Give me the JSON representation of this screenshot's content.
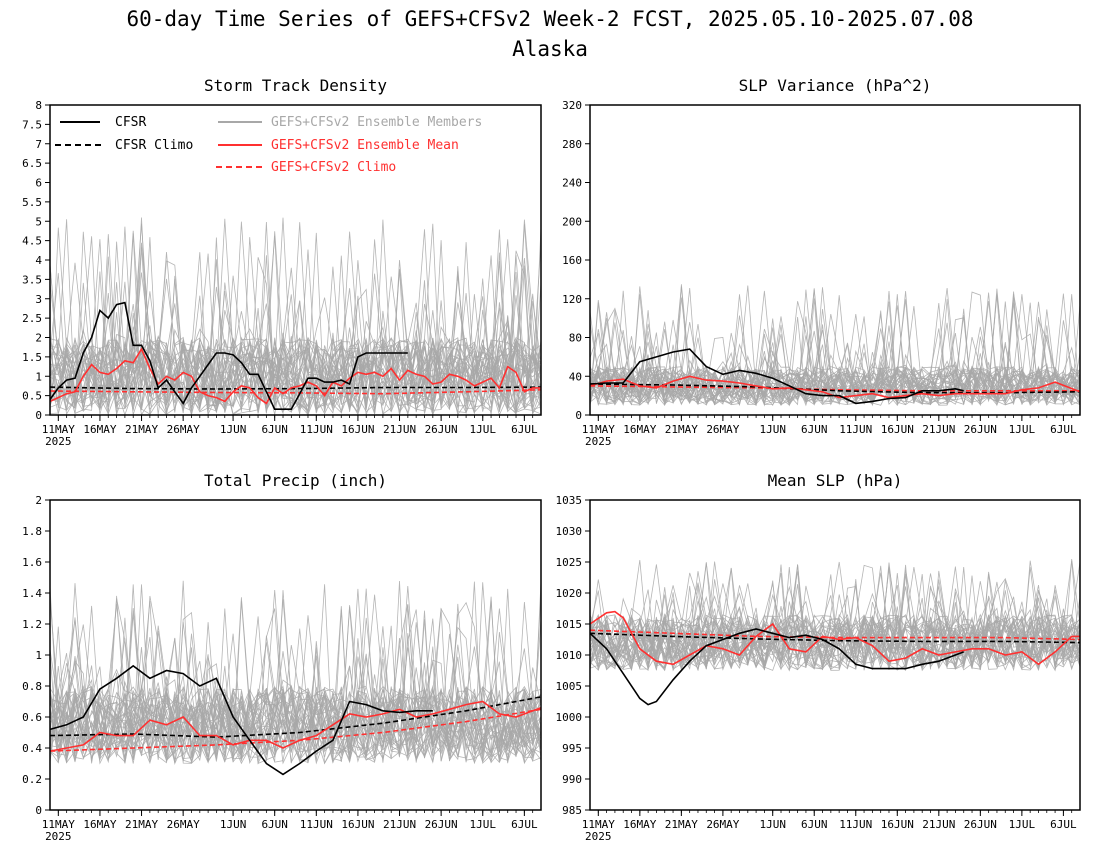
{
  "figure": {
    "title_line1": "60-day Time Series of GEFS+CFSv2 Week-2 FCST, 2025.05.10-2025.07.08",
    "title_line2": "Alaska"
  },
  "legend": {
    "cfsr": "CFSR",
    "cfsr_climo": "CFSR Climo",
    "members": "GEFS+CFSv2 Ensemble Members",
    "mean": "GEFS+CFSv2 Ensemble Mean",
    "climo": "GEFS+CFSv2 Climo"
  },
  "colors": {
    "cfsr": "#000000",
    "members": "#a8a8a8",
    "mean": "#ff3030",
    "climo": "#ff3030",
    "background": "#ffffff"
  },
  "x_axis": {
    "tick_days": [
      1,
      6,
      11,
      16,
      22,
      27,
      32,
      37,
      42,
      47,
      52,
      57
    ],
    "tick_labels": [
      "11MAY",
      "16MAY",
      "21MAY",
      "26MAY",
      "1JUN",
      "6JUN",
      "11JUN",
      "16JUN",
      "21JUN",
      "26JUN",
      "1JUL",
      "6JUL"
    ],
    "year_label": "2025",
    "day_range": [
      0,
      59
    ]
  },
  "chart_data": [
    {
      "type": "line",
      "title": "Storm Track Density",
      "ylim": [
        0,
        8
      ],
      "yticks": [
        "0",
        "0.5",
        "1",
        "1.5",
        "2",
        "2.5",
        "3",
        "3.5",
        "4",
        "4.5",
        "5",
        "5.5",
        "6",
        "6.5",
        "7",
        "7.5",
        "8"
      ],
      "ytick_step": 0.5,
      "legend_position": "top",
      "members": {
        "mean_base": 1.0,
        "spread": 1.0,
        "peak_max": 5.1,
        "count": 40
      },
      "series": [
        {
          "name": "CFSR",
          "days": [
            0,
            1,
            2,
            3,
            4,
            5,
            6,
            7,
            8,
            9,
            10,
            11,
            12,
            13,
            14,
            15,
            16,
            17,
            18,
            19,
            20,
            21,
            22,
            23,
            24,
            25,
            26,
            27,
            28,
            29,
            30,
            31,
            32,
            33,
            34,
            35,
            36,
            37,
            38,
            39,
            40,
            41,
            42,
            43
          ],
          "values": [
            0.4,
            0.7,
            0.9,
            0.95,
            1.6,
            2.0,
            2.7,
            2.5,
            2.85,
            2.9,
            1.8,
            1.8,
            1.4,
            0.7,
            0.9,
            0.6,
            0.3,
            0.7,
            1.0,
            1.3,
            1.6,
            1.6,
            1.55,
            1.35,
            1.05,
            1.05,
            0.6,
            0.15,
            0.15,
            0.15,
            0.55,
            0.95,
            0.95,
            0.85,
            0.85,
            0.9,
            0.8,
            1.5,
            1.6,
            1.6,
            1.6,
            1.6,
            1.6,
            1.6
          ]
        },
        {
          "name": "CFSR Climo",
          "days": [
            0,
            10,
            20,
            30,
            40,
            50,
            59
          ],
          "values": [
            0.72,
            0.68,
            0.67,
            0.68,
            0.71,
            0.71,
            0.72
          ]
        },
        {
          "name": "GEFS+CFSv2 Ensemble Mean",
          "days": [
            0,
            1,
            2,
            3,
            4,
            5,
            6,
            7,
            8,
            9,
            10,
            11,
            12,
            13,
            14,
            15,
            16,
            17,
            18,
            19,
            20,
            21,
            22,
            23,
            24,
            25,
            26,
            27,
            28,
            29,
            30,
            31,
            32,
            33,
            34,
            35,
            36,
            37,
            38,
            39,
            40,
            41,
            42,
            43,
            44,
            45,
            46,
            47,
            48,
            49,
            50,
            51,
            52,
            53,
            54,
            55,
            56,
            57,
            58,
            59
          ],
          "values": [
            0.35,
            0.45,
            0.55,
            0.6,
            1.0,
            1.3,
            1.1,
            1.05,
            1.2,
            1.4,
            1.35,
            1.7,
            1.2,
            0.8,
            1.0,
            0.9,
            1.1,
            1.0,
            0.6,
            0.5,
            0.45,
            0.35,
            0.6,
            0.75,
            0.7,
            0.45,
            0.3,
            0.7,
            0.55,
            0.7,
            0.75,
            0.85,
            0.75,
            0.5,
            0.85,
            0.75,
            0.95,
            1.1,
            1.05,
            1.1,
            1.0,
            1.2,
            0.9,
            1.15,
            1.05,
            1.0,
            0.8,
            0.85,
            1.05,
            1.0,
            0.9,
            0.75,
            0.85,
            0.95,
            0.7,
            1.25,
            1.1,
            0.6,
            0.7,
            0.7
          ]
        },
        {
          "name": "GEFS+CFSv2 Climo",
          "days": [
            0,
            10,
            20,
            30,
            40,
            50,
            59
          ],
          "values": [
            0.62,
            0.6,
            0.58,
            0.57,
            0.55,
            0.6,
            0.65
          ]
        }
      ]
    },
    {
      "type": "line",
      "title": "SLP Variance (hPa^2)",
      "ylim": [
        0,
        320
      ],
      "yticks": [
        "0",
        "40",
        "80",
        "120",
        "160",
        "200",
        "240",
        "280",
        "320"
      ],
      "ytick_step": 40,
      "members": {
        "mean_base": 30,
        "spread": 20,
        "peak_max": 135,
        "count": 40
      },
      "series": [
        {
          "name": "CFSR",
          "days": [
            0,
            2,
            4,
            6,
            8,
            10,
            12,
            14,
            16,
            18,
            20,
            22,
            24,
            26,
            28,
            30,
            32,
            34,
            36,
            38,
            40,
            42,
            44,
            45
          ],
          "values": [
            32,
            33,
            33,
            55,
            60,
            65,
            68,
            50,
            42,
            46,
            43,
            38,
            30,
            22,
            20,
            20,
            12,
            14,
            17,
            18,
            25,
            25,
            27,
            25
          ]
        },
        {
          "name": "CFSR Climo",
          "days": [
            0,
            10,
            20,
            30,
            40,
            50,
            59
          ],
          "values": [
            32,
            31,
            29,
            25,
            23,
            23,
            24
          ]
        },
        {
          "name": "GEFS+CFSv2 Ensemble Mean",
          "days": [
            0,
            2,
            4,
            6,
            8,
            10,
            12,
            14,
            16,
            18,
            20,
            22,
            24,
            26,
            28,
            30,
            32,
            34,
            36,
            38,
            40,
            42,
            44,
            46,
            48,
            50,
            52,
            54,
            56,
            59
          ],
          "values": [
            30,
            35,
            37,
            30,
            28,
            35,
            40,
            36,
            35,
            33,
            30,
            27,
            28,
            26,
            24,
            18,
            20,
            22,
            18,
            20,
            22,
            20,
            22,
            22,
            22,
            22,
            26,
            28,
            34,
            24
          ]
        },
        {
          "name": "GEFS+CFSv2 Climo",
          "days": [
            0,
            10,
            20,
            30,
            40,
            50,
            59
          ],
          "values": [
            30,
            29,
            28,
            26,
            25,
            25,
            25
          ]
        }
      ]
    },
    {
      "type": "line",
      "title": "Total Precip (inch)",
      "ylim": [
        0,
        2
      ],
      "yticks": [
        "0",
        "0.2",
        "0.4",
        "0.6",
        "0.8",
        "1",
        "1.2",
        "1.4",
        "1.6",
        "1.8",
        "2"
      ],
      "ytick_step": 0.2,
      "members": {
        "mean_base": 0.55,
        "spread": 0.25,
        "peak_max": 1.48,
        "count": 40
      },
      "series": [
        {
          "name": "CFSR",
          "days": [
            0,
            2,
            4,
            6,
            8,
            10,
            12,
            14,
            16,
            18,
            20,
            22,
            24,
            26,
            28,
            30,
            32,
            34,
            36,
            38,
            40,
            42,
            44,
            46
          ],
          "values": [
            0.52,
            0.55,
            0.6,
            0.78,
            0.85,
            0.93,
            0.85,
            0.9,
            0.88,
            0.8,
            0.85,
            0.6,
            0.45,
            0.3,
            0.23,
            0.3,
            0.38,
            0.45,
            0.7,
            0.68,
            0.64,
            0.63,
            0.64,
            0.64
          ]
        },
        {
          "name": "CFSR Climo",
          "days": [
            0,
            10,
            20,
            30,
            40,
            50,
            59
          ],
          "values": [
            0.48,
            0.49,
            0.47,
            0.5,
            0.56,
            0.64,
            0.73
          ]
        },
        {
          "name": "GEFS+CFSv2 Ensemble Mean",
          "days": [
            0,
            2,
            4,
            6,
            8,
            10,
            12,
            14,
            16,
            18,
            20,
            22,
            24,
            26,
            28,
            30,
            32,
            34,
            36,
            38,
            40,
            42,
            44,
            46,
            48,
            50,
            52,
            54,
            56,
            59
          ],
          "values": [
            0.38,
            0.4,
            0.42,
            0.5,
            0.48,
            0.48,
            0.58,
            0.55,
            0.6,
            0.48,
            0.48,
            0.42,
            0.45,
            0.45,
            0.4,
            0.45,
            0.48,
            0.55,
            0.62,
            0.6,
            0.62,
            0.65,
            0.6,
            0.62,
            0.65,
            0.68,
            0.7,
            0.62,
            0.6,
            0.66
          ]
        },
        {
          "name": "GEFS+CFSv2 Climo",
          "days": [
            0,
            10,
            20,
            30,
            40,
            50,
            59
          ],
          "values": [
            0.38,
            0.4,
            0.42,
            0.45,
            0.5,
            0.57,
            0.65
          ]
        }
      ]
    },
    {
      "type": "line",
      "title": "Mean SLP (hPa)",
      "ylim": [
        985,
        1035
      ],
      "yticks": [
        "985",
        "990",
        "995",
        "1000",
        "1005",
        "1010",
        "1015",
        "1020",
        "1025",
        "1030",
        "1035"
      ],
      "ytick_step": 5,
      "members": {
        "mean_base": 1012,
        "spread": 4.5,
        "peak_max": 1025.5,
        "count": 40
      },
      "series": [
        {
          "name": "CFSR",
          "days": [
            0,
            2,
            4,
            6,
            7,
            8,
            10,
            12,
            14,
            16,
            18,
            20,
            22,
            24,
            26,
            28,
            30,
            32,
            34,
            36,
            38,
            40,
            42,
            44,
            45
          ],
          "values": [
            1013.5,
            1011,
            1007,
            1003,
            1002,
            1002.5,
            1006,
            1009,
            1011.5,
            1012.5,
            1013.5,
            1014.2,
            1013.5,
            1012.8,
            1013.2,
            1012.5,
            1011,
            1008.5,
            1007.8,
            1007.8,
            1007.8,
            1008.5,
            1009,
            1010,
            1010.5
          ]
        },
        {
          "name": "CFSR Climo",
          "days": [
            0,
            10,
            20,
            30,
            40,
            50,
            59
          ],
          "values": [
            1013.5,
            1013,
            1012.6,
            1012.3,
            1012.2,
            1012.2,
            1012
          ]
        },
        {
          "name": "GEFS+CFSv2 Ensemble Mean",
          "days": [
            0,
            2,
            3,
            4,
            6,
            8,
            10,
            12,
            14,
            16,
            18,
            20,
            22,
            24,
            26,
            28,
            30,
            32,
            34,
            36,
            38,
            40,
            42,
            44,
            46,
            48,
            50,
            52,
            54,
            56,
            58,
            59
          ],
          "values": [
            1015,
            1016.8,
            1017,
            1016,
            1011,
            1009,
            1008.5,
            1010,
            1011.5,
            1011,
            1010,
            1013,
            1015,
            1011,
            1010.5,
            1013,
            1012.5,
            1012.8,
            1011.5,
            1009,
            1009.5,
            1011,
            1010,
            1010.5,
            1011,
            1011,
            1010,
            1010.5,
            1008.5,
            1010.5,
            1013,
            1013
          ]
        },
        {
          "name": "GEFS+CFSv2 Climo",
          "days": [
            0,
            10,
            20,
            30,
            40,
            50,
            59
          ],
          "values": [
            1014,
            1013.5,
            1013,
            1012.8,
            1012.8,
            1012.8,
            1012.5
          ]
        }
      ]
    }
  ]
}
